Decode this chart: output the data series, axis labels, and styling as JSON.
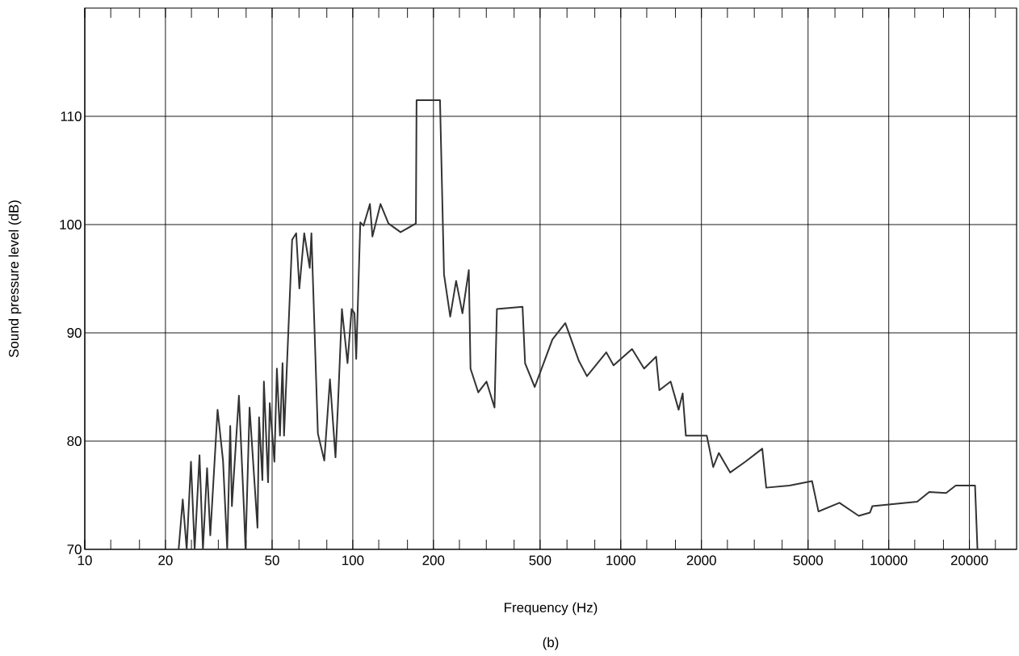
{
  "chart_data": {
    "type": "line",
    "xlabel": "Frequency (Hz)",
    "ylabel": "Sound pressure level (dB)",
    "annotations": [
      "(b)"
    ],
    "log": "x",
    "grid": true,
    "xlim": [
      10,
      30000
    ],
    "ylim": [
      70,
      120
    ],
    "xticks": [
      10,
      {
        "value": 12.5,
        "label": null
      },
      {
        "value": 16,
        "label": null
      },
      20,
      {
        "value": 25,
        "label": null
      },
      {
        "value": 31.5,
        "label": null
      },
      {
        "value": 40,
        "label": null
      },
      50,
      {
        "value": 63,
        "label": null
      },
      {
        "value": 80,
        "label": null
      },
      100,
      {
        "value": 125,
        "label": null
      },
      {
        "value": 160,
        "label": null
      },
      200,
      {
        "value": 250,
        "label": null
      },
      {
        "value": 315,
        "label": null
      },
      {
        "value": 400,
        "label": null
      },
      500,
      {
        "value": 630,
        "label": null
      },
      {
        "value": 800,
        "label": null
      },
      1000,
      {
        "value": 1250,
        "label": null
      },
      {
        "value": 1600,
        "label": null
      },
      2000,
      {
        "value": 2500,
        "label": null
      },
      {
        "value": 3150,
        "label": null
      },
      {
        "value": 4000,
        "label": null
      },
      5000,
      {
        "value": 6300,
        "label": null
      },
      {
        "value": 8000,
        "label": null
      },
      10000,
      {
        "value": 12500,
        "label": null
      },
      {
        "value": 16000,
        "label": null
      },
      20000,
      {
        "value": 25000,
        "label": null
      }
    ],
    "yticks": [
      70,
      80,
      90,
      100,
      110
    ],
    "series": [
      {
        "color": "#333333",
        "x": [
          22.4,
          23.2,
          24.0,
          24.9,
          25.7,
          26.8,
          27.6,
          28.6,
          29.4,
          31.3,
          32.8,
          34.0,
          34.9,
          35.4,
          37.6,
          39.3,
          39.8,
          41.2,
          44.1,
          44.7,
          46.0,
          46.6,
          48.3,
          49.0,
          51.0,
          52.1,
          53.5,
          54.7,
          55.4,
          59.4,
          61.5,
          63.2,
          65.9,
          69.1,
          70.1,
          74.1,
          78.3,
          82.2,
          86.2,
          88.0,
          91.1,
          95.6,
          99,
          101.5,
          103,
          106.7,
          109.7,
          115.9,
          118.4,
          126.9,
          135.9,
          150.8,
          172,
          173,
          211.6,
          219,
          231,
          243,
          256.6,
          271,
          275,
          294,
          315.5,
          338,
          345,
          430,
          439.5,
          477.5,
          512,
          556,
          621,
          698,
          748,
          883,
          940,
          1102,
          1222,
          1355,
          1393,
          1535,
          1644,
          1702,
          1750,
          2094,
          2213,
          2323,
          2559,
          2917,
          3373,
          3491,
          4265,
          5173,
          5467,
          6546,
          7727,
          8513,
          8690,
          12770,
          14160,
          16370,
          17780,
          20990,
          21430
        ],
        "values": [
          70,
          74.6,
          70,
          78.1,
          70,
          78.7,
          70,
          77.5,
          71.3,
          82.9,
          78.2,
          70,
          81.4,
          74,
          84.2,
          73.5,
          70,
          83.1,
          72,
          82.2,
          76.4,
          85.5,
          76.2,
          83.5,
          78.1,
          86.7,
          80.5,
          87.2,
          80.5,
          98.6,
          99.2,
          94.1,
          99.2,
          96,
          99.2,
          80.7,
          78.2,
          85.7,
          78.5,
          83.2,
          92.2,
          87.2,
          92.2,
          91.8,
          87.6,
          100.2,
          99.9,
          101.9,
          98.9,
          101.9,
          100.1,
          99.3,
          100.1,
          111.5,
          111.5,
          95.4,
          91.5,
          94.8,
          91.8,
          95.8,
          86.7,
          84.5,
          85.5,
          83.1,
          92.2,
          92.4,
          87.2,
          85.0,
          87.0,
          89.4,
          90.9,
          87.4,
          86,
          88.2,
          87,
          88.5,
          86.7,
          87.8,
          84.7,
          85.5,
          82.9,
          84.4,
          80.5,
          80.5,
          77.6,
          78.9,
          77.1,
          78.1,
          79.3,
          75.7,
          75.9,
          76.3,
          73.5,
          74.3,
          73.1,
          73.4,
          74.0,
          74.4,
          75.3,
          75.2,
          75.9,
          75.9,
          70
        ]
      }
    ]
  }
}
